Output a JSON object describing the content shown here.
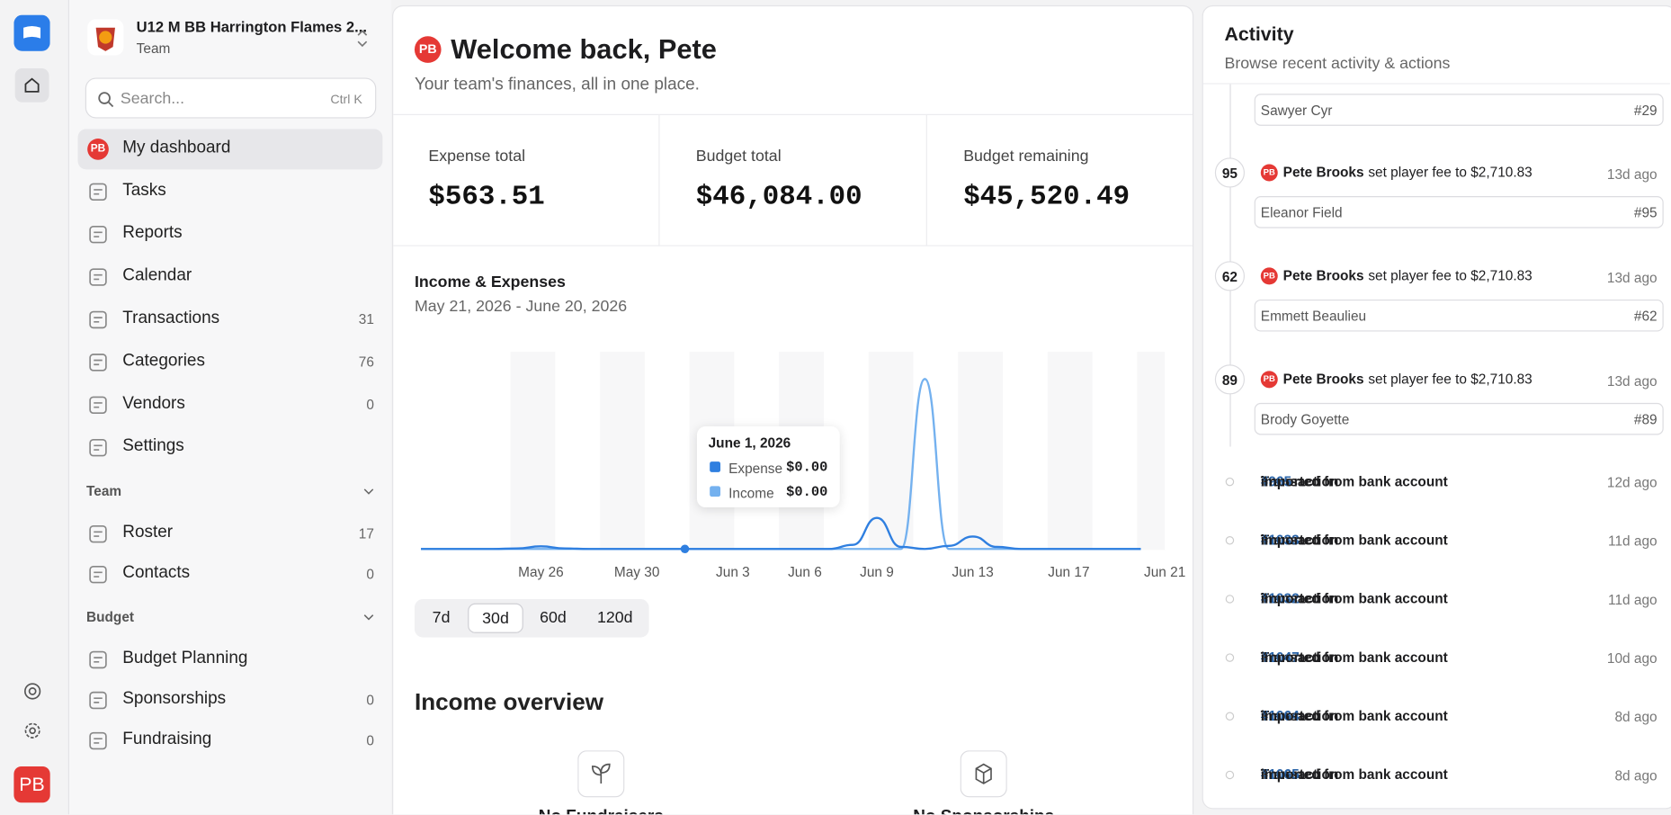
{
  "team": {
    "name": "U12 M BB Harrington Flames 2...",
    "subtitle": "Team"
  },
  "search": {
    "placeholder": "Search...",
    "shortcut": "Ctrl K"
  },
  "user_initials": "PB",
  "nav": {
    "active": "My dashboard",
    "items": [
      {
        "label": "My dashboard"
      },
      {
        "label": "Tasks"
      },
      {
        "label": "Reports"
      },
      {
        "label": "Calendar"
      },
      {
        "label": "Transactions",
        "count": 31
      },
      {
        "label": "Categories",
        "count": 76
      },
      {
        "label": "Vendors",
        "count": 0
      },
      {
        "label": "Settings"
      }
    ]
  },
  "team_section": {
    "title": "Team",
    "items": [
      {
        "label": "Roster",
        "count": 17
      },
      {
        "label": "Contacts",
        "count": 0
      }
    ]
  },
  "budget_section": {
    "title": "Budget",
    "items": [
      {
        "label": "Budget Planning"
      },
      {
        "label": "Sponsorships",
        "count": 0
      },
      {
        "label": "Fundraising",
        "count": 0
      }
    ]
  },
  "header": {
    "title": "Welcome back, Pete",
    "subtitle": "Your team's finances, all in one place."
  },
  "stats": [
    {
      "label": "Expense total",
      "value": "$563.51"
    },
    {
      "label": "Budget total",
      "value": "$46,084.00"
    },
    {
      "label": "Budget remaining",
      "value": "$45,520.49"
    }
  ],
  "chart_data": {
    "type": "line",
    "title": "Income & Expenses",
    "subtitle": "May 21, 2026 - June 20, 2026",
    "x": [
      "May 21",
      "May 22",
      "May 23",
      "May 24",
      "May 25",
      "May 26",
      "May 27",
      "May 28",
      "May 29",
      "May 30",
      "May 31",
      "Jun 1",
      "Jun 2",
      "Jun 3",
      "Jun 4",
      "Jun 5",
      "Jun 6",
      "Jun 7",
      "Jun 8",
      "Jun 9",
      "Jun 10",
      "Jun 11",
      "Jun 12",
      "Jun 13",
      "Jun 14",
      "Jun 15",
      "Jun 16",
      "Jun 17",
      "Jun 18",
      "Jun 19",
      "Jun 20"
    ],
    "xlim": [
      0,
      31
    ],
    "xticks": [
      {
        "value": 5,
        "label": "May 26"
      },
      {
        "value": 9,
        "label": "May 30"
      },
      {
        "value": 13,
        "label": "Jun 3"
      },
      {
        "value": 16,
        "label": "Jun 6"
      },
      {
        "value": 19,
        "label": "Jun 9"
      },
      {
        "value": 23,
        "label": "Jun 13"
      },
      {
        "value": 27,
        "label": "Jun 17"
      },
      {
        "value": 31,
        "label": "Jun 21"
      }
    ],
    "ylim": [
      0,
      1800
    ],
    "series": [
      {
        "name": "Expense",
        "color": "#2f7fe0",
        "values": [
          0,
          0,
          0,
          0,
          5,
          25,
          5,
          0,
          0,
          0,
          0,
          0,
          0,
          0,
          0,
          0,
          0,
          0,
          40,
          300,
          20,
          0,
          30,
          120,
          20,
          0,
          0,
          0,
          0,
          0,
          0
        ]
      },
      {
        "name": "Income",
        "color": "#74b1ef",
        "values": [
          0,
          0,
          0,
          0,
          0,
          0,
          0,
          0,
          0,
          0,
          0,
          0,
          0,
          0,
          0,
          0,
          0,
          0,
          0,
          0,
          0,
          1640,
          0,
          0,
          0,
          0,
          0,
          0,
          0,
          0,
          0
        ]
      }
    ],
    "tooltip": {
      "index": 11,
      "date": "June 1, 2026",
      "values": [
        "$0.00",
        "$0.00"
      ]
    },
    "ranges": [
      "7d",
      "30d",
      "60d",
      "120d"
    ],
    "selected_range": "30d"
  },
  "income_overview": {
    "title": "Income overview",
    "empty": [
      "No Fundraisers",
      "No Sponsorships"
    ]
  },
  "activity": {
    "title": "Activity",
    "subtitle": "Browse recent activity & actions",
    "first_card": {
      "name": "Sawyer Cyr",
      "ref": "#29"
    },
    "fee_events": [
      {
        "badge": "95",
        "user": "Pete Brooks",
        "action": "set player fee to $2,710.83",
        "time": "13d ago",
        "name": "Eleanor Field",
        "ref": "#95"
      },
      {
        "badge": "62",
        "user": "Pete Brooks",
        "action": "set player fee to $2,710.83",
        "time": "13d ago",
        "name": "Emmett Beaulieu",
        "ref": "#62"
      },
      {
        "badge": "89",
        "user": "Pete Brooks",
        "action": "set player fee to $2,710.83",
        "time": "13d ago",
        "name": "Brody Goyette",
        "ref": "#89"
      }
    ],
    "transactions": [
      {
        "prefix": "Transaction",
        "ref": "#965",
        "suffix": "imported from bank account",
        "time": "12d ago"
      },
      {
        "prefix": "Transaction",
        "ref": "#1033",
        "suffix": "imported from bank account",
        "time": "11d ago"
      },
      {
        "prefix": "Transaction",
        "ref": "#1032",
        "suffix": "imported from bank account",
        "time": "11d ago"
      },
      {
        "prefix": "Transaction",
        "ref": "#1047",
        "suffix": "imported from bank account",
        "time": "10d ago"
      },
      {
        "prefix": "Transaction",
        "ref": "#1064",
        "suffix": "imported from bank account",
        "time": "8d ago"
      },
      {
        "prefix": "Transaction",
        "ref": "#1065",
        "suffix": "imported from bank account",
        "time": "8d ago"
      }
    ]
  }
}
